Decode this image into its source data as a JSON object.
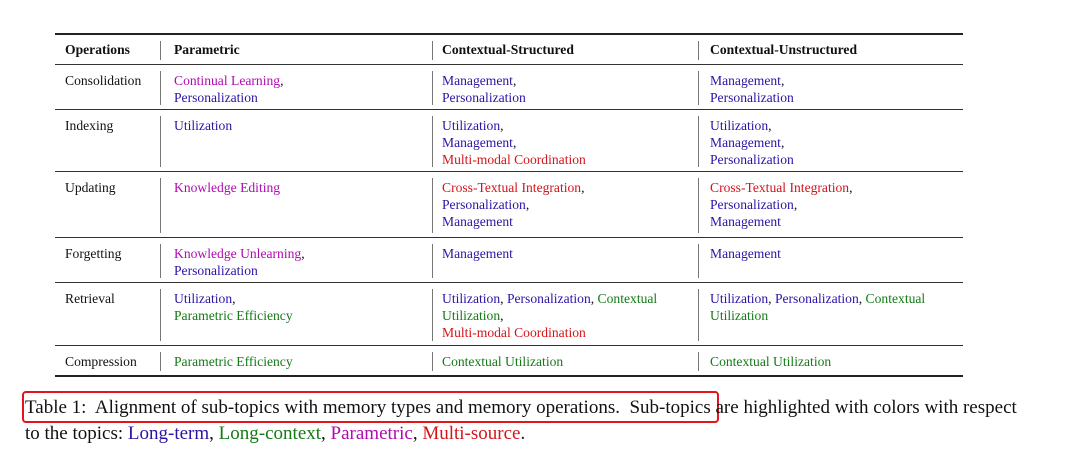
{
  "colors": {
    "long_term": "#2c13a6",
    "long_context": "#157a17",
    "parametric": "#b00ab0",
    "multi_source": "#d4141a",
    "text": "#111111",
    "highlight_box": "#e4141b"
  },
  "table": {
    "headers": [
      "Operations",
      "Parametric",
      "Contextual-Structured",
      "Contextual-Unstructured"
    ],
    "rows": [
      {
        "op": "Consolidation",
        "height": 45,
        "cells": [
          [
            [
              {
                "t": "Continual Learning",
                "c": "parametric"
              },
              {
                "t": ","
              }
            ],
            [
              {
                "t": "Personalization",
                "c": "long_term"
              }
            ]
          ],
          [
            [
              {
                "t": "Management",
                "c": "long_term"
              },
              {
                "t": ","
              }
            ],
            [
              {
                "t": "Personalization",
                "c": "long_term"
              }
            ]
          ],
          [
            [
              {
                "t": "Management",
                "c": "long_term"
              },
              {
                "t": ","
              }
            ],
            [
              {
                "t": "Personalization",
                "c": "long_term"
              }
            ]
          ]
        ]
      },
      {
        "op": "Indexing",
        "height": 62,
        "cells": [
          [
            [
              {
                "t": "Utilization",
                "c": "long_term"
              }
            ]
          ],
          [
            [
              {
                "t": "Utilization",
                "c": "long_term"
              },
              {
                "t": ","
              }
            ],
            [
              {
                "t": "Management",
                "c": "long_term"
              },
              {
                "t": ","
              }
            ],
            [
              {
                "t": "Multi-modal Coordination",
                "c": "multi_source"
              }
            ]
          ],
          [
            [
              {
                "t": "Utilization",
                "c": "long_term"
              },
              {
                "t": ","
              }
            ],
            [
              {
                "t": "Management",
                "c": "long_term"
              },
              {
                "t": ","
              }
            ],
            [
              {
                "t": "Personalization",
                "c": "long_term"
              }
            ]
          ]
        ]
      },
      {
        "op": "Updating",
        "height": 66,
        "cells": [
          [
            [
              {
                "t": "Knowledge Editing",
                "c": "parametric"
              }
            ]
          ],
          [
            [
              {
                "t": "Cross-Textual Integration",
                "c": "multi_source"
              },
              {
                "t": ","
              }
            ],
            [
              {
                "t": "Personalization",
                "c": "long_term"
              },
              {
                "t": ","
              }
            ],
            [
              {
                "t": "Management",
                "c": "long_term"
              }
            ]
          ],
          [
            [
              {
                "t": "Cross-Textual Integration",
                "c": "multi_source"
              },
              {
                "t": ","
              }
            ],
            [
              {
                "t": "Personalization",
                "c": "long_term"
              },
              {
                "t": ","
              }
            ],
            [
              {
                "t": "Management",
                "c": "long_term"
              }
            ]
          ]
        ]
      },
      {
        "op": "Forgetting",
        "height": 45,
        "cells": [
          [
            [
              {
                "t": "Knowledge Unlearning",
                "c": "parametric"
              },
              {
                "t": ","
              }
            ],
            [
              {
                "t": "Personalization",
                "c": "long_term"
              }
            ]
          ],
          [
            [
              {
                "t": "Management",
                "c": "long_term"
              }
            ]
          ],
          [
            [
              {
                "t": "Management",
                "c": "long_term"
              }
            ]
          ]
        ]
      },
      {
        "op": "Retrieval",
        "height": 63,
        "cells": [
          [
            [
              {
                "t": "Utilization",
                "c": "long_term"
              },
              {
                "t": ","
              }
            ],
            [
              {
                "t": "Parametric Efficiency",
                "c": "long_context"
              }
            ]
          ],
          [
            [
              {
                "t": "Utilization",
                "c": "long_term"
              },
              {
                "t": ", "
              },
              {
                "t": "Personalization",
                "c": "long_term"
              },
              {
                "t": ", "
              },
              {
                "t": "Contextual",
                "c": "long_context"
              }
            ],
            [
              {
                "t": "Utilization",
                "c": "long_context"
              },
              {
                "t": ","
              }
            ],
            [
              {
                "t": "Multi-modal Coordination",
                "c": "multi_source"
              }
            ]
          ],
          [
            [
              {
                "t": "Utilization",
                "c": "long_term"
              },
              {
                "t": ", "
              },
              {
                "t": "Personalization",
                "c": "long_term"
              },
              {
                "t": ", "
              },
              {
                "t": "Contextual",
                "c": "long_context"
              }
            ],
            [
              {
                "t": "Utilization",
                "c": "long_context"
              }
            ]
          ]
        ]
      },
      {
        "op": "Compression",
        "height": 29,
        "cells": [
          [
            [
              {
                "t": "Parametric Efficiency",
                "c": "long_context"
              }
            ]
          ],
          [
            [
              {
                "t": "Contextual Utilization",
                "c": "long_context"
              }
            ]
          ],
          [
            [
              {
                "t": "Contextual Utilization",
                "c": "long_context"
              }
            ]
          ]
        ]
      }
    ]
  },
  "caption": {
    "label": "Table 1:",
    "highlighted": "Alignment of sub-topics with memory types and memory operations.",
    "rest": "Sub-topics are highlighted with colors with respect to the topics:",
    "topics": [
      {
        "t": "Long-term",
        "c": "long_term"
      },
      {
        "t": "Long-context",
        "c": "long_context"
      },
      {
        "t": "Parametric",
        "c": "parametric"
      },
      {
        "t": "Multi-source",
        "c": "multi_source"
      }
    ],
    "end": "."
  }
}
